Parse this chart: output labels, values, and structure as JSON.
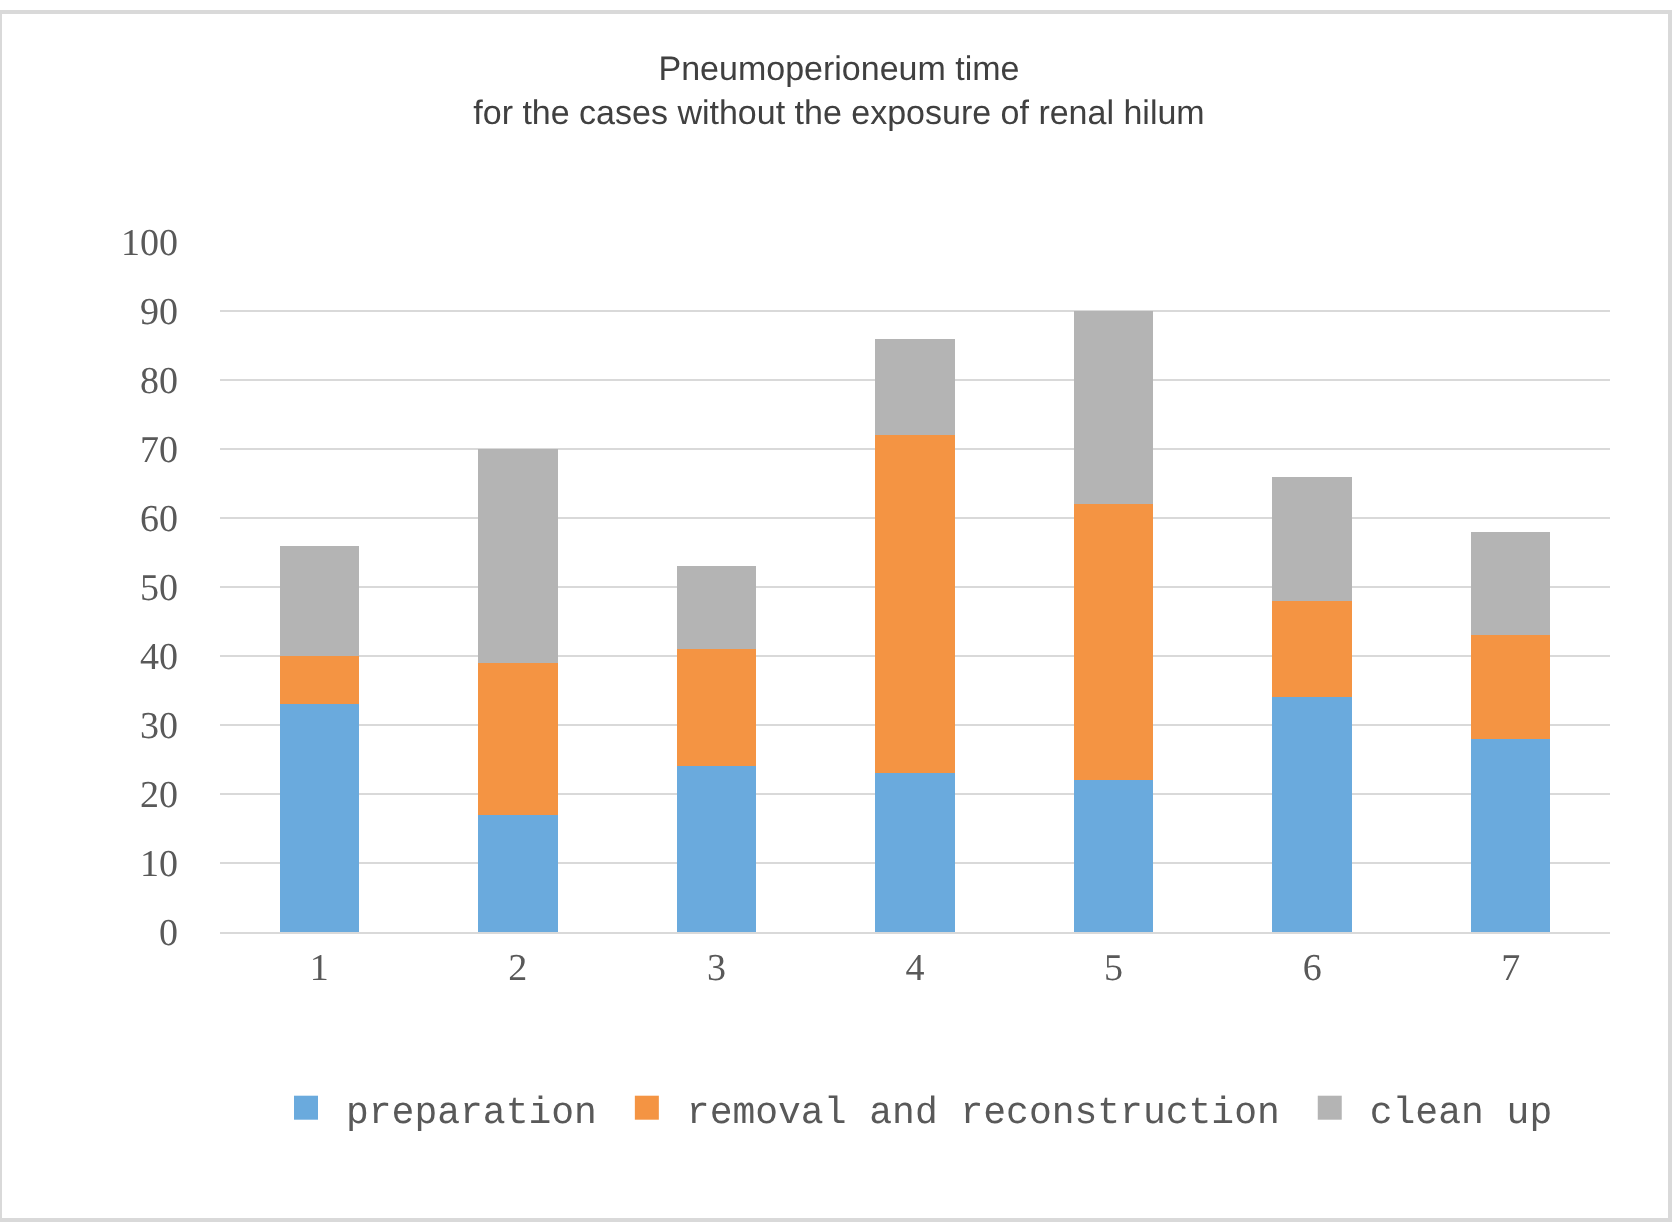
{
  "chart_data": {
    "type": "bar",
    "stacked": true,
    "title": "Pneumoperioneum time\nfor the cases without the exposure of renal hilum",
    "categories": [
      "1",
      "2",
      "3",
      "4",
      "5",
      "6",
      "7"
    ],
    "series": [
      {
        "name": "preparation",
        "color": "#6aaadd",
        "values": [
          33,
          17,
          24,
          23,
          22,
          34,
          28
        ]
      },
      {
        "name": "removal and reconstruction",
        "color": "#f49443",
        "values": [
          7,
          22,
          17,
          49,
          40,
          14,
          15
        ]
      },
      {
        "name": "clean up",
        "color": "#b4b4b4",
        "values": [
          16,
          31,
          12,
          14,
          28,
          18,
          15
        ]
      }
    ],
    "ylim": [
      0,
      100
    ],
    "yticks": [
      0,
      10,
      20,
      30,
      40,
      50,
      60,
      70,
      80,
      90,
      100
    ],
    "grid": "y",
    "legend": "bottom"
  }
}
